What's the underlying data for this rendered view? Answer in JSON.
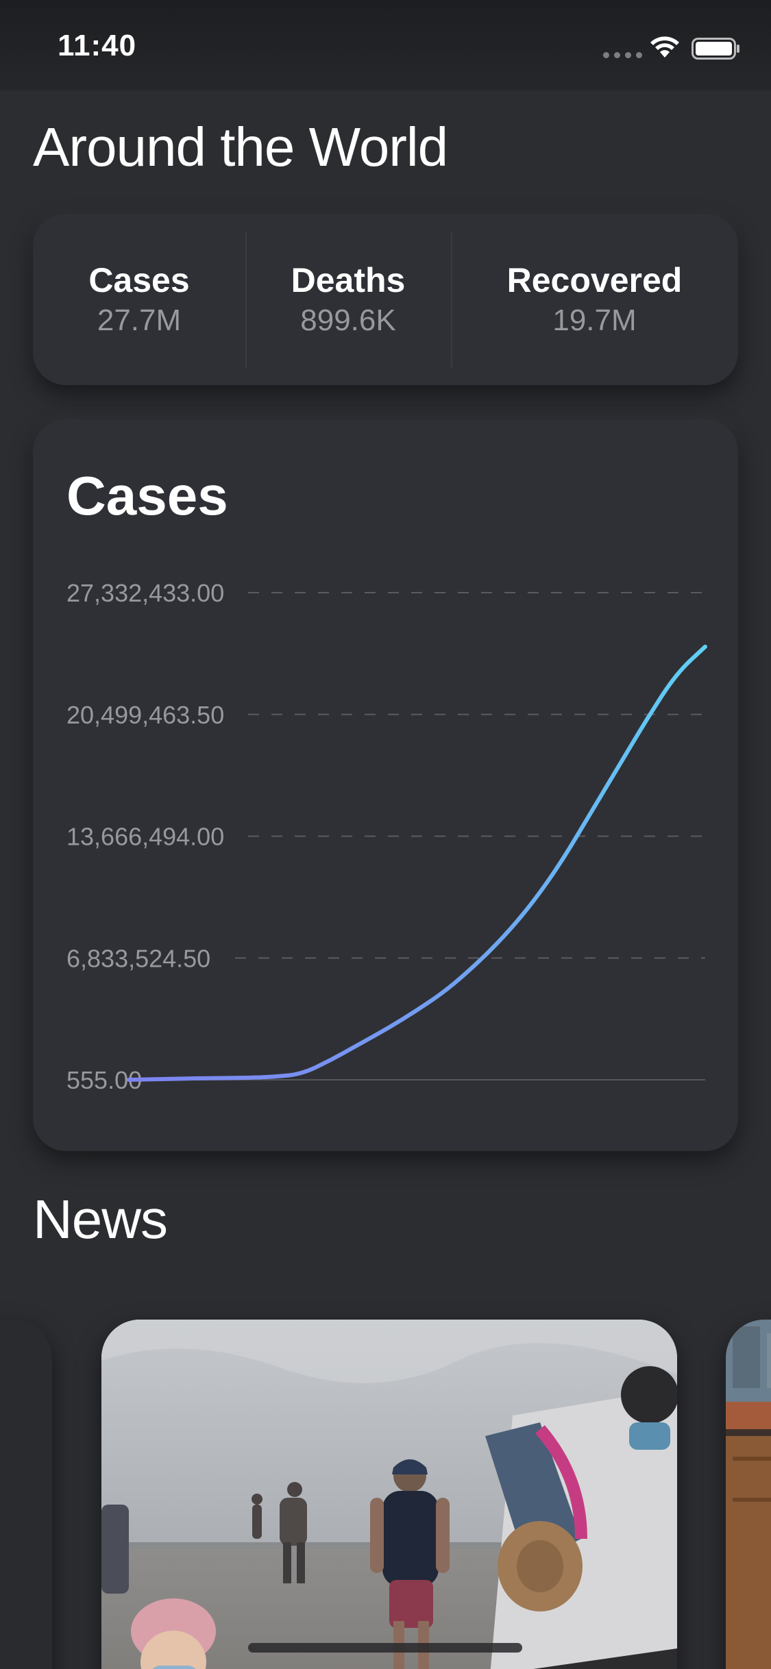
{
  "status_bar": {
    "time": "11:40",
    "icons": [
      "signal-dots-icon",
      "wifi-icon",
      "battery-icon"
    ]
  },
  "header": {
    "title": "Around the World"
  },
  "stats": [
    {
      "label": "Cases",
      "value": "27.7M"
    },
    {
      "label": "Deaths",
      "value": "899.6K"
    },
    {
      "label": "Recovered",
      "value": "19.7M"
    }
  ],
  "chart_card": {
    "title": "Cases",
    "chart_data": {
      "type": "line",
      "title": "Cases",
      "xlabel": "",
      "ylabel": "",
      "y_ticks": [
        "27,332,433.00",
        "20,499,463.50",
        "13,666,494.00",
        "6,833,524.50",
        "555.00"
      ],
      "ylim": [
        555,
        27332433
      ],
      "grid": "dashed horizontal",
      "legend": "none",
      "series": [
        {
          "color_start": "#7d84f0",
          "color_end": "#5fd0f5",
          "x": [
            0,
            0.1,
            0.2,
            0.25,
            0.3,
            0.35,
            0.4,
            0.45,
            0.5,
            0.55,
            0.6,
            0.65,
            0.7,
            0.75,
            0.8,
            0.85,
            0.9,
            0.95,
            1.0
          ],
          "values": [
            555,
            70000,
            110000,
            160000,
            320000,
            1100000,
            2000000,
            2900000,
            3900000,
            5000000,
            6400000,
            8000000,
            9900000,
            12200000,
            14900000,
            17600000,
            20300000,
            22800000,
            24300000
          ]
        }
      ]
    }
  },
  "news": {
    "title": "News",
    "cards": [
      {
        "type": "partial-left"
      },
      {
        "type": "photo",
        "subject": "people-on-beach-photo"
      },
      {
        "type": "partial-right"
      }
    ]
  }
}
